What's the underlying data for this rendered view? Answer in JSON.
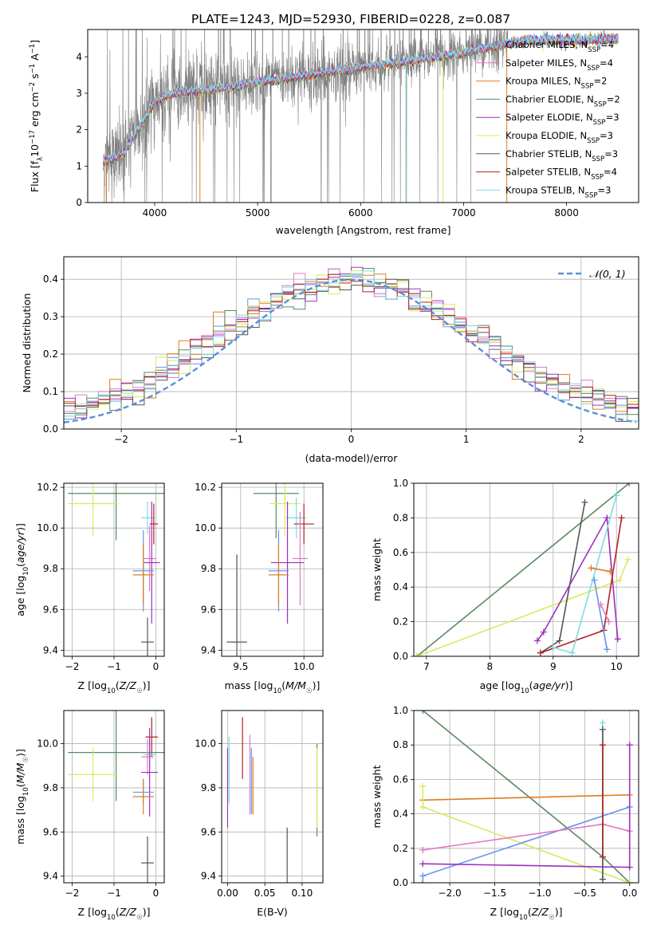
{
  "figure": {
    "title": "PLATE=1243, MJD=52930, FIBERID=0228, z=0.087"
  },
  "colors": {
    "chabrier_miles": "#6495ed",
    "salpeter_miles": "#e377c2",
    "kroupa_miles": "#e07b20",
    "chabrier_elodie": "#5a8a62",
    "salpeter_elodie": "#9b30c0",
    "kroupa_elodie": "#d4ec5e",
    "chabrier_stelib": "#555555",
    "salpeter_stelib": "#b22222",
    "kroupa_stelib": "#7fdbe0",
    "data": "#808080",
    "normal": "#5b8fd6"
  },
  "chart_data": [
    {
      "id": "spectrum",
      "type": "line",
      "xlabel": "wavelength [Angstrom, rest frame]",
      "ylabel_parts": [
        "Flux [f",
        "λ",
        "10",
        "−17",
        " erg cm",
        "−2",
        " s",
        "−1",
        " A",
        "−1",
        "]"
      ],
      "xlim": [
        3350,
        8700
      ],
      "ylim": [
        0,
        4.75
      ],
      "xticks": [
        4000,
        5000,
        6000,
        7000,
        8000
      ],
      "yticks": [
        0,
        1,
        2,
        3,
        4
      ],
      "legend_position": "right",
      "legend": [
        {
          "label": "Chabrier MILES, N",
          "sub": "SSP",
          "suffix": "=4",
          "color_key": "chabrier_miles"
        },
        {
          "label": "Salpeter MILES, N",
          "sub": "SSP",
          "suffix": "=4",
          "color_key": "salpeter_miles"
        },
        {
          "label": "Kroupa MILES, N",
          "sub": "SSP",
          "suffix": "=2",
          "color_key": "kroupa_miles"
        },
        {
          "label": "Chabrier ELODIE, N",
          "sub": "SSP",
          "suffix": "=2",
          "color_key": "chabrier_elodie"
        },
        {
          "label": "Salpeter ELODIE, N",
          "sub": "SSP",
          "suffix": "=3",
          "color_key": "salpeter_elodie"
        },
        {
          "label": "Kroupa ELODIE, N",
          "sub": "SSP",
          "suffix": "=3",
          "color_key": "kroupa_elodie"
        },
        {
          "label": "Chabrier STELIB, N",
          "sub": "SSP",
          "suffix": "=3",
          "color_key": "chabrier_stelib"
        },
        {
          "label": "Salpeter STELIB, N",
          "sub": "SSP",
          "suffix": "=4",
          "color_key": "salpeter_stelib"
        },
        {
          "label": "Kroupa STELIB, N",
          "sub": "SSP",
          "suffix": "=3",
          "color_key": "kroupa_stelib"
        }
      ],
      "continuum_anchors": [
        [
          3500,
          1.1
        ],
        [
          3700,
          1.35
        ],
        [
          3900,
          2.3
        ],
        [
          4000,
          2.8
        ],
        [
          4200,
          3.0
        ],
        [
          4400,
          3.05
        ],
        [
          4700,
          3.15
        ],
        [
          5000,
          3.3
        ],
        [
          5500,
          3.5
        ],
        [
          6000,
          3.7
        ],
        [
          6500,
          3.9
        ],
        [
          7000,
          4.1
        ],
        [
          7400,
          4.35
        ],
        [
          7600,
          4.45
        ],
        [
          8000,
          4.45
        ],
        [
          8500,
          4.5
        ]
      ],
      "model_range": [
        3500,
        8500
      ],
      "data_range": [
        3500,
        7430
      ]
    },
    {
      "id": "residuals",
      "type": "bar",
      "xlabel": "(data-model)/error",
      "ylabel": "Normed distribution",
      "xlim": [
        -2.5,
        2.5
      ],
      "ylim": [
        0,
        0.46
      ],
      "xticks": [
        -2,
        -1,
        0,
        1,
        2
      ],
      "xtick_labels": [
        "−2",
        "−1",
        "0",
        "1",
        "2"
      ],
      "yticks": [
        0,
        0.1,
        0.2,
        0.3,
        0.4
      ],
      "ytick_labels": [
        "0.0",
        "0.1",
        "0.2",
        "0.3",
        "0.4"
      ],
      "bin_width": 0.1,
      "legend": [
        {
          "label": "𝒩(0, 1)",
          "style": "dashed",
          "color_key": "normal"
        }
      ]
    },
    {
      "id": "age_vs_Z",
      "type": "scatter",
      "xlabel": "Z [log10(Z/Z☉)]",
      "ylabel": "age  [log10(age/yr)]",
      "xlim": [
        -2.2,
        0.2
      ],
      "ylim": [
        9.37,
        10.22
      ],
      "xticks": [
        -2,
        -1,
        0
      ],
      "xtick_labels": [
        "−2",
        "−1",
        "0"
      ],
      "yticks": [
        9.4,
        9.6,
        9.8,
        10.0,
        10.2
      ],
      "ytick_labels": [
        "9.4",
        "9.6",
        "9.8",
        "10.0",
        "10.2"
      ],
      "points": [
        {
          "c": "chabrier_elodie",
          "x": -0.95,
          "xerr": 1.15,
          "y": 10.17,
          "yerr": 0.23
        },
        {
          "c": "kroupa_elodie",
          "x": -1.5,
          "xerr": 0.6,
          "y": 10.12,
          "yerr": 0.16
        },
        {
          "c": "kroupa_stelib",
          "x": -0.2,
          "xerr": 0.15,
          "y": 10.05,
          "yerr": 0.08
        },
        {
          "c": "salpeter_stelib",
          "x": -0.05,
          "xerr": 0.1,
          "y": 10.02,
          "yerr": 0.1
        },
        {
          "c": "salpeter_miles",
          "x": -0.15,
          "xerr": 0.15,
          "y": 9.85,
          "yerr": 0.16
        },
        {
          "c": "salpeter_elodie",
          "x": -0.1,
          "xerr": 0.2,
          "y": 9.83,
          "yerr": 0.3
        },
        {
          "c": "chabrier_miles",
          "x": -0.3,
          "xerr": 0.25,
          "y": 9.79,
          "yerr": 0.2
        },
        {
          "c": "kroupa_miles",
          "x": -0.3,
          "xerr": 0.25,
          "y": 9.77,
          "yerr": 0.15
        },
        {
          "c": "chabrier_stelib",
          "x": -0.2,
          "xerr": 0.15,
          "y": 9.44,
          "yerr": 0.12
        }
      ]
    },
    {
      "id": "age_vs_mass",
      "type": "scatter",
      "xlabel": "mass [log10(M/M☉)]",
      "ylabel": "",
      "xlim": [
        9.35,
        10.15
      ],
      "ylim": [
        9.37,
        10.22
      ],
      "xticks": [
        9.5,
        10.0
      ],
      "xtick_labels": [
        "9.5",
        "10.0"
      ],
      "yticks": [
        9.4,
        9.6,
        9.8,
        10.0,
        10.2
      ],
      "ytick_labels": [
        "9.4",
        "9.6",
        "9.8",
        "10.0",
        "10.2"
      ],
      "points": [
        {
          "c": "chabrier_elodie",
          "x": 9.78,
          "xerr": 0.18,
          "y": 10.17,
          "yerr": 0.22
        },
        {
          "c": "kroupa_elodie",
          "x": 9.85,
          "xerr": 0.12,
          "y": 10.12,
          "yerr": 0.16
        },
        {
          "c": "kroupa_stelib",
          "x": 9.94,
          "xerr": 0.08,
          "y": 10.05,
          "yerr": 0.1
        },
        {
          "c": "salpeter_stelib",
          "x": 10.0,
          "xerr": 0.08,
          "y": 10.02,
          "yerr": 0.1
        },
        {
          "c": "salpeter_miles",
          "x": 9.97,
          "xerr": 0.06,
          "y": 9.85,
          "yerr": 0.23
        },
        {
          "c": "salpeter_elodie",
          "x": 9.87,
          "xerr": 0.13,
          "y": 9.83,
          "yerr": 0.3
        },
        {
          "c": "chabrier_miles",
          "x": 9.8,
          "xerr": 0.08,
          "y": 9.79,
          "yerr": 0.2
        },
        {
          "c": "kroupa_miles",
          "x": 9.8,
          "xerr": 0.08,
          "y": 9.77,
          "yerr": 0.15
        },
        {
          "c": "chabrier_stelib",
          "x": 9.47,
          "xerr": 0.08,
          "y": 9.44,
          "yerr": 0.43
        }
      ]
    },
    {
      "id": "weight_vs_age",
      "type": "line",
      "xlabel": "age  [log10(age/yr)]",
      "ylabel": "mass weight",
      "xlim": [
        6.8,
        10.35
      ],
      "ylim": [
        0,
        1
      ],
      "xticks": [
        7,
        8,
        9,
        10
      ],
      "xtick_labels": [
        "7",
        "8",
        "9",
        "10"
      ],
      "yticks": [
        0,
        0.2,
        0.4,
        0.6,
        0.8,
        1.0
      ],
      "ytick_labels": [
        "0.0",
        "0.2",
        "0.4",
        "0.6",
        "0.8",
        "1.0"
      ],
      "series": [
        {
          "c": "chabrier_elodie",
          "x": [
            6.85,
            10.2
          ],
          "y": [
            0.0,
            1.0
          ]
        },
        {
          "c": "kroupa_elodie",
          "x": [
            6.85,
            10.05,
            10.18
          ],
          "y": [
            0.0,
            0.44,
            0.56
          ]
        },
        {
          "c": "chabrier_stelib",
          "x": [
            8.8,
            9.1,
            9.5
          ],
          "y": [
            0.02,
            0.09,
            0.89
          ]
        },
        {
          "c": "salpeter_elodie",
          "x": [
            8.75,
            8.85,
            9.85,
            10.02
          ],
          "y": [
            0.09,
            0.14,
            0.8,
            0.1
          ]
        },
        {
          "c": "salpeter_stelib",
          "x": [
            8.8,
            9.8,
            10.08
          ],
          "y": [
            0.02,
            0.15,
            0.8
          ]
        },
        {
          "c": "kroupa_stelib",
          "x": [
            9.0,
            9.3,
            10.0
          ],
          "y": [
            0.05,
            0.02,
            0.93
          ]
        },
        {
          "c": "kroupa_miles",
          "x": [
            9.6,
            9.9
          ],
          "y": [
            0.51,
            0.49
          ]
        },
        {
          "c": "chabrier_miles",
          "x": [
            9.65,
            9.85
          ],
          "y": [
            0.44,
            0.04
          ]
        },
        {
          "c": "salpeter_miles",
          "x": [
            9.75,
            9.88
          ],
          "y": [
            0.3,
            0.2
          ]
        }
      ]
    },
    {
      "id": "mass_vs_Z",
      "type": "scatter",
      "xlabel": "Z [log10(Z/Z☉)]",
      "ylabel": "mass [log10(M/M☉)]",
      "xlim": [
        -2.2,
        0.2
      ],
      "ylim": [
        9.37,
        10.15
      ],
      "xticks": [
        -2,
        -1,
        0
      ],
      "xtick_labels": [
        "−2",
        "−1",
        "0"
      ],
      "yticks": [
        9.4,
        9.6,
        9.8,
        10.0
      ],
      "ytick_labels": [
        "9.4",
        "9.6",
        "9.8",
        "10.0"
      ],
      "points": [
        {
          "c": "salpeter_stelib",
          "x": -0.1,
          "xerr": 0.15,
          "y": 10.03,
          "yerr": 0.09
        },
        {
          "c": "chabrier_elodie",
          "x": -0.95,
          "xerr": 1.15,
          "y": 9.96,
          "yerr": 0.22
        },
        {
          "c": "kroupa_stelib",
          "x": -0.15,
          "xerr": 0.15,
          "y": 9.95,
          "yerr": 0.08
        },
        {
          "c": "salpeter_miles",
          "x": -0.2,
          "xerr": 0.15,
          "y": 9.94,
          "yerr": 0.08
        },
        {
          "c": "salpeter_elodie",
          "x": -0.15,
          "xerr": 0.2,
          "y": 9.87,
          "yerr": 0.2
        },
        {
          "c": "kroupa_elodie",
          "x": -1.5,
          "xerr": 0.6,
          "y": 9.86,
          "yerr": 0.12
        },
        {
          "c": "chabrier_miles",
          "x": -0.3,
          "xerr": 0.25,
          "y": 9.78,
          "yerr": 0.06
        },
        {
          "c": "kroupa_miles",
          "x": -0.3,
          "xerr": 0.25,
          "y": 9.76,
          "yerr": 0.08
        },
        {
          "c": "chabrier_stelib",
          "x": -0.2,
          "xerr": 0.15,
          "y": 9.46,
          "yerr": 0.12
        }
      ]
    },
    {
      "id": "mass_vs_ebv",
      "type": "scatter",
      "xlabel": "E(B-V)",
      "ylabel": "",
      "xlim": [
        -0.008,
        0.128
      ],
      "ylim": [
        9.37,
        10.15
      ],
      "xticks": [
        0.0,
        0.05,
        0.1
      ],
      "xtick_labels": [
        "0.00",
        "0.05",
        "0.10"
      ],
      "yticks": [
        9.4,
        9.6,
        9.8,
        10.0
      ],
      "ytick_labels": [
        "9.4",
        "9.6",
        "9.8",
        "10.0"
      ],
      "points": [
        {
          "c": "salpeter_elodie",
          "x": 0.0,
          "xerr": 0,
          "y": 9.8,
          "yerr": 0.18
        },
        {
          "c": "kroupa_stelib",
          "x": 0.002,
          "xerr": 0,
          "y": 9.88,
          "yerr": 0.15
        },
        {
          "c": "salpeter_stelib",
          "x": 0.02,
          "xerr": 0,
          "y": 9.98,
          "yerr": 0.14
        },
        {
          "c": "salpeter_miles",
          "x": 0.03,
          "xerr": 0,
          "y": 9.86,
          "yerr": 0.18
        },
        {
          "c": "chabrier_miles",
          "x": 0.032,
          "xerr": 0,
          "y": 9.83,
          "yerr": 0.15
        },
        {
          "c": "kroupa_miles",
          "x": 0.034,
          "xerr": 0,
          "y": 9.81,
          "yerr": 0.13
        },
        {
          "c": "chabrier_stelib",
          "x": 0.08,
          "xerr": 0,
          "y": 9.46,
          "yerr": 0.16
        },
        {
          "c": "chabrier_elodie",
          "x": 0.12,
          "xerr": 0,
          "y": 9.79,
          "yerr": 0.21
        },
        {
          "c": "kroupa_elodie",
          "x": 0.12,
          "xerr": 0,
          "y": 9.8,
          "yerr": 0.18
        }
      ]
    },
    {
      "id": "weight_vs_Z",
      "type": "line",
      "xlabel": "Z [log10(Z/Z☉)]",
      "ylabel": "mass weight",
      "xlim": [
        -2.4,
        0.1
      ],
      "ylim": [
        0,
        1
      ],
      "xticks": [
        -2.0,
        -1.5,
        -1.0,
        -0.5,
        0.0
      ],
      "xtick_labels": [
        "−2.0",
        "−1.5",
        "−1.0",
        "−0.5",
        "0.0"
      ],
      "yticks": [
        0,
        0.2,
        0.4,
        0.6,
        0.8,
        1.0
      ],
      "ytick_labels": [
        "0.0",
        "0.2",
        "0.4",
        "0.6",
        "0.8",
        "1.0"
      ],
      "series": [
        {
          "c": "chabrier_elodie",
          "x": [
            -2.3,
            -0.3,
            0.0
          ],
          "y": [
            1.0,
            0.15,
            0.0
          ]
        },
        {
          "c": "kroupa_miles",
          "x": [
            -2.3,
            0.0
          ],
          "y": [
            0.48,
            0.51
          ]
        },
        {
          "c": "kroupa_elodie",
          "x": [
            -2.3,
            -2.3,
            0.0
          ],
          "y": [
            0.56,
            0.44,
            0.0
          ]
        },
        {
          "c": "chabrier_miles",
          "x": [
            -2.3,
            -2.3,
            0.0
          ],
          "y": [
            0.0,
            0.04,
            0.44
          ]
        },
        {
          "c": "salpeter_miles",
          "x": [
            -2.3,
            -0.3,
            0.0
          ],
          "y": [
            0.19,
            0.34,
            0.3
          ]
        },
        {
          "c": "salpeter_elodie",
          "x": [
            -2.3,
            0.0,
            0.0
          ],
          "y": [
            0.11,
            0.09,
            0.8
          ]
        },
        {
          "c": "kroupa_stelib",
          "x": [
            -0.3,
            -0.3
          ],
          "y": [
            0.02,
            0.93
          ]
        },
        {
          "c": "chabrier_stelib",
          "x": [
            -0.3,
            -0.3
          ],
          "y": [
            0.02,
            0.89
          ]
        },
        {
          "c": "salpeter_stelib",
          "x": [
            -0.3,
            -0.3
          ],
          "y": [
            0.15,
            0.8
          ]
        }
      ]
    }
  ]
}
